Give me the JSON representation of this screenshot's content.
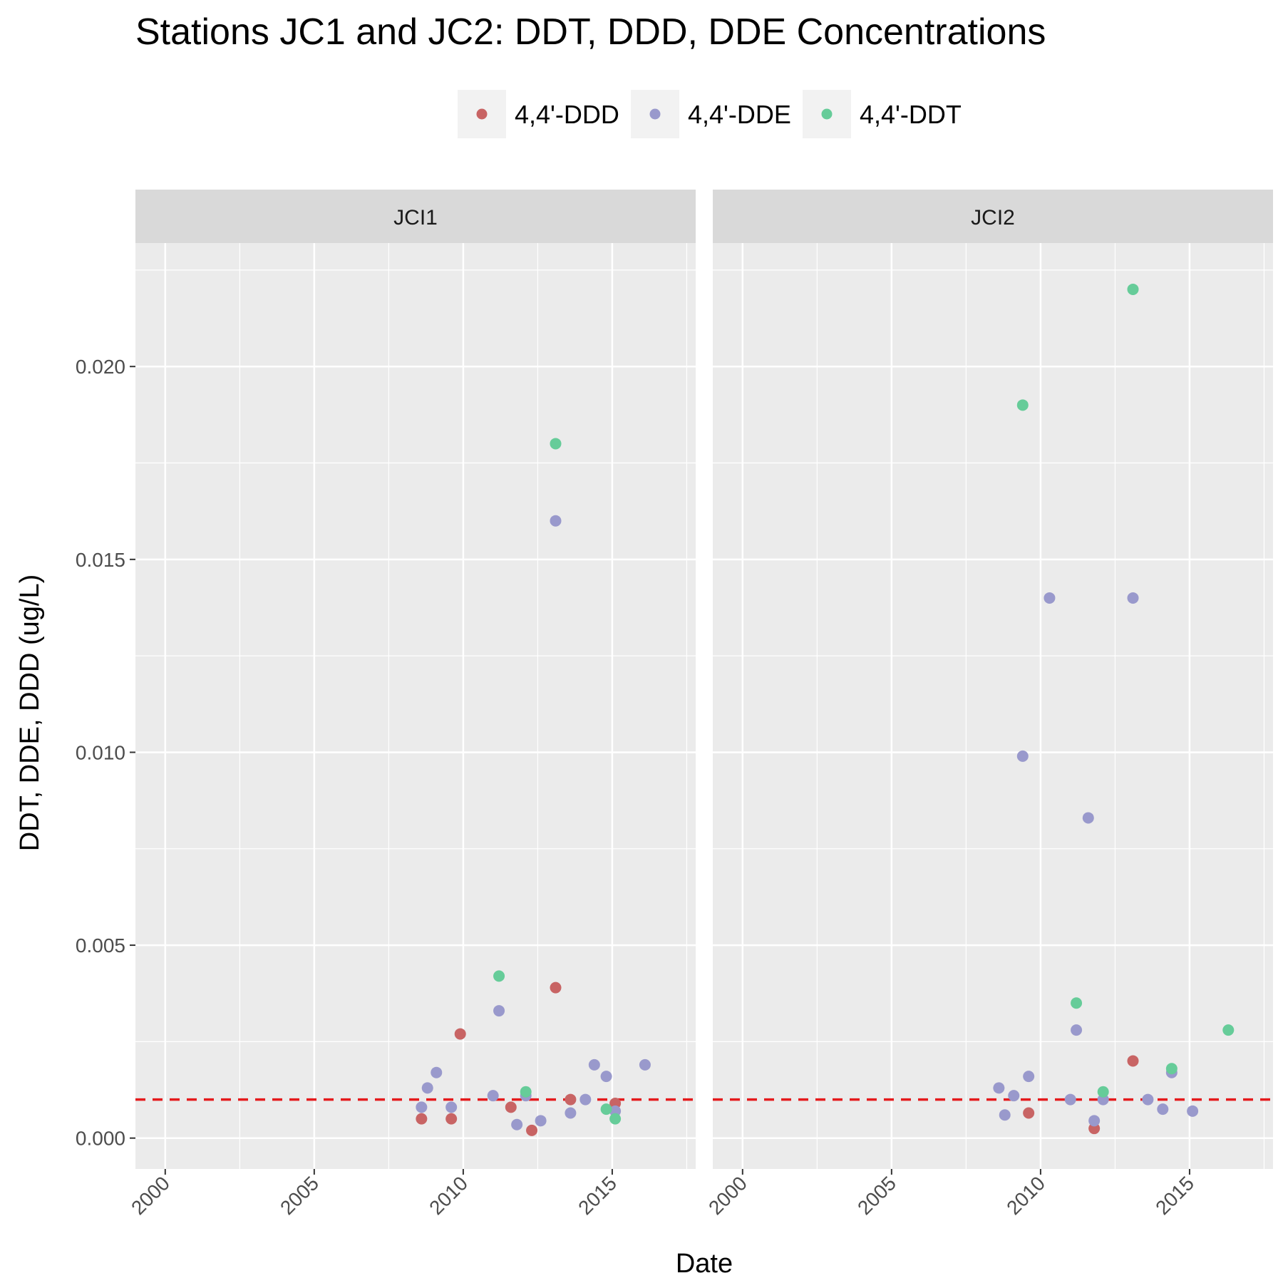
{
  "chart_data": {
    "type": "scatter",
    "title": "Stations JC1 and JC2: DDT, DDD, DDE Concentrations",
    "xlabel": "Date",
    "ylabel": "DDT, DDE, DDD (ug/L)",
    "xlim": [
      1999,
      2017.8
    ],
    "ylim": [
      -0.0008,
      0.0232
    ],
    "x_ticks": [
      "2000",
      "2005",
      "2010",
      "2015"
    ],
    "y_ticks": [
      "0.000",
      "0.005",
      "0.010",
      "0.015",
      "0.020"
    ],
    "reference_line": {
      "value": 0.001,
      "style": "dashed",
      "color": "#e41a1c"
    },
    "legend": {
      "position": "top"
    },
    "grid": true,
    "panels": [
      "JCI1",
      "JCI2"
    ],
    "series": [
      {
        "name": "4,4'-DDD",
        "color": "#c86464",
        "points": {
          "JCI1": [
            [
              2008.6,
              0.0005
            ],
            [
              2009.6,
              0.0005
            ],
            [
              2009.9,
              0.0027
            ],
            [
              2011.6,
              0.0008
            ],
            [
              2012.3,
              0.0002
            ],
            [
              2013.1,
              0.0039
            ],
            [
              2013.6,
              0.001
            ],
            [
              2015.1,
              0.0009
            ]
          ],
          "JCI2": [
            [
              2009.6,
              0.00065
            ],
            [
              2011.8,
              0.00025
            ],
            [
              2013.1,
              0.002
            ]
          ]
        }
      },
      {
        "name": "4,4'-DDE",
        "color": "#9999cc",
        "points": {
          "JCI1": [
            [
              2008.6,
              0.0008
            ],
            [
              2008.8,
              0.0013
            ],
            [
              2009.1,
              0.0017
            ],
            [
              2009.6,
              0.0008
            ],
            [
              2011.0,
              0.0011
            ],
            [
              2011.2,
              0.0033
            ],
            [
              2011.8,
              0.00035
            ],
            [
              2012.1,
              0.0011
            ],
            [
              2012.6,
              0.00045
            ],
            [
              2013.1,
              0.016
            ],
            [
              2013.6,
              0.00065
            ],
            [
              2014.1,
              0.001
            ],
            [
              2014.4,
              0.0019
            ],
            [
              2014.8,
              0.0016
            ],
            [
              2015.1,
              0.0007
            ],
            [
              2016.1,
              0.0019
            ]
          ],
          "JCI2": [
            [
              2008.6,
              0.0013
            ],
            [
              2008.8,
              0.0006
            ],
            [
              2009.1,
              0.0011
            ],
            [
              2009.4,
              0.0099
            ],
            [
              2009.6,
              0.0016
            ],
            [
              2010.3,
              0.014
            ],
            [
              2011.0,
              0.001
            ],
            [
              2011.2,
              0.0028
            ],
            [
              2011.6,
              0.0083
            ],
            [
              2011.8,
              0.00045
            ],
            [
              2012.1,
              0.001
            ],
            [
              2013.1,
              0.014
            ],
            [
              2013.6,
              0.001
            ],
            [
              2014.1,
              0.00075
            ],
            [
              2014.4,
              0.0017
            ],
            [
              2015.1,
              0.0007
            ]
          ]
        }
      },
      {
        "name": "4,4'-DDT",
        "color": "#66cc99",
        "points": {
          "JCI1": [
            [
              2011.2,
              0.0042
            ],
            [
              2012.1,
              0.0012
            ],
            [
              2013.1,
              0.018
            ],
            [
              2014.8,
              0.00075
            ],
            [
              2015.1,
              0.0005
            ]
          ],
          "JCI2": [
            [
              2009.4,
              0.019
            ],
            [
              2011.2,
              0.0035
            ],
            [
              2012.1,
              0.0012
            ],
            [
              2013.1,
              0.022
            ],
            [
              2014.4,
              0.0018
            ],
            [
              2016.3,
              0.0028
            ]
          ]
        }
      }
    ]
  }
}
